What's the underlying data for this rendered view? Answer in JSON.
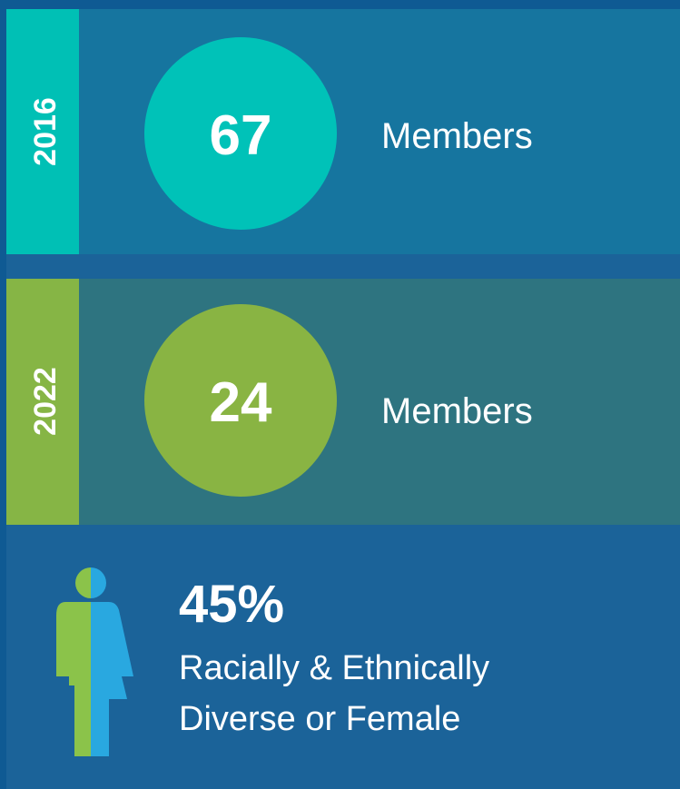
{
  "panels": [
    {
      "year": "2016",
      "value": 67,
      "label": "Members"
    },
    {
      "year": "2022",
      "value": 24,
      "label": "Members"
    }
  ],
  "stat": {
    "value": "45%",
    "lines": [
      "Racially & Ethnically",
      "Diverse or Female"
    ]
  }
}
